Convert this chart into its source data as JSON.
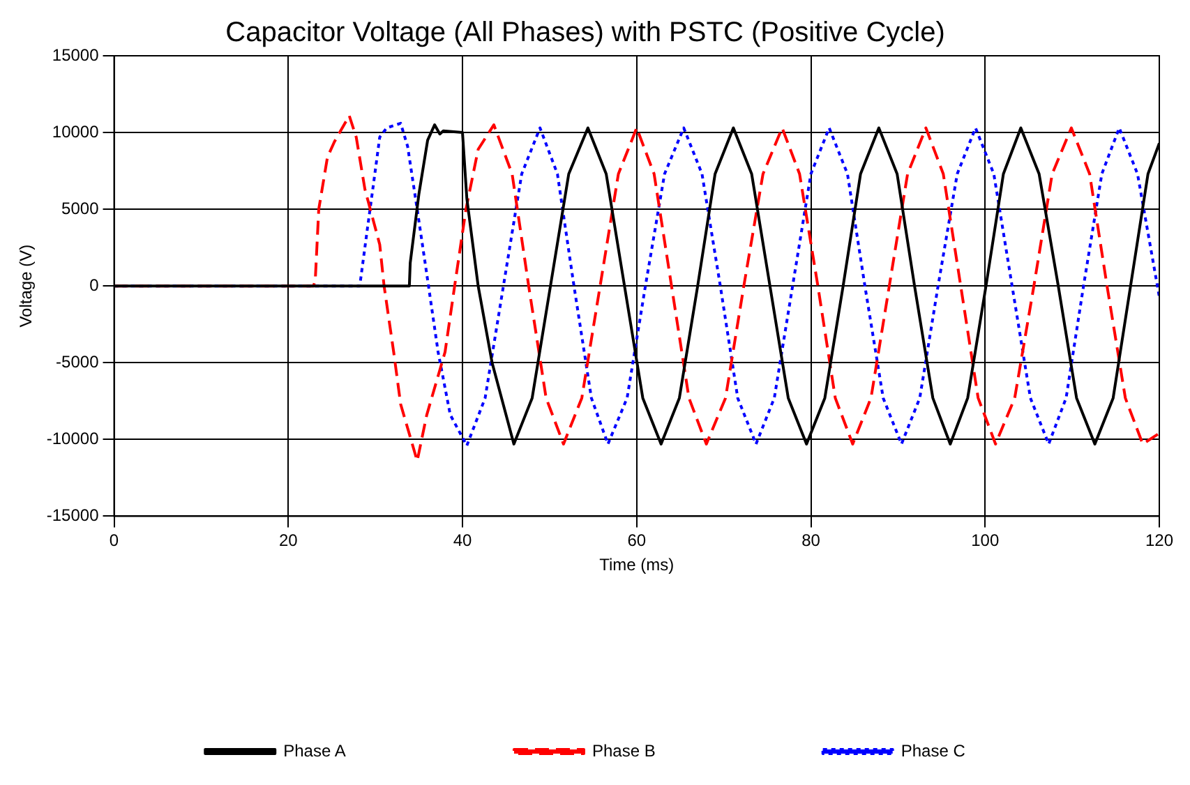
{
  "chart_data": {
    "type": "line",
    "title": "Capacitor Voltage (All Phases) with PSTC (Positive Cycle)",
    "xlabel": "Time (ms)",
    "ylabel": "Voltage (V)",
    "xlim": [
      0,
      120
    ],
    "xticks": [
      0,
      20,
      40,
      60,
      80,
      100,
      120
    ],
    "ylim": [
      -15000,
      15000
    ],
    "yticks": [
      -15000,
      -10000,
      -5000,
      0,
      5000,
      10000,
      15000
    ],
    "grid": true,
    "legend": "bottom",
    "series": [
      {
        "name": "Phase A",
        "color": "#000000",
        "line_style": "solid",
        "x": [
          0,
          33.9,
          34.0,
          35.0,
          36.0,
          36.8,
          37.4,
          37.8,
          40.0,
          40.5,
          41.8,
          43.4,
          45.9,
          48.0,
          50.1,
          52.2,
          54.4,
          56.5,
          58.6,
          60.7,
          62.8,
          64.9,
          67.0,
          69.0,
          71.1,
          73.2,
          75.3,
          77.4,
          79.5,
          81.6,
          83.7,
          85.7,
          87.8,
          89.9,
          91.9,
          94.0,
          96.0,
          98.0,
          100.1,
          102.1,
          104.1,
          106.2,
          108.4,
          110.5,
          112.6,
          114.7,
          116.7,
          118.7,
          120
        ],
        "values": [
          0,
          0,
          1500,
          6000,
          9500,
          10500,
          9900,
          10100,
          10000,
          5700,
          0,
          -5000,
          -10300,
          -7300,
          0,
          7300,
          10300,
          7300,
          0,
          -7300,
          -10300,
          -7300,
          0,
          7300,
          10300,
          7300,
          0,
          -7300,
          -10300,
          -7300,
          0,
          7300,
          10300,
          7300,
          0,
          -7300,
          -10300,
          -7300,
          0,
          7300,
          10300,
          7300,
          0,
          -7300,
          -10300,
          -7300,
          0,
          7300,
          9300
        ]
      },
      {
        "name": "Phase B",
        "color": "#ff0000",
        "line_style": "dashed",
        "x": [
          0,
          22.9,
          23.1,
          23.5,
          24.5,
          25.3,
          27.0,
          27.8,
          28.8,
          30.5,
          31.0,
          32.1,
          32.9,
          34.8,
          35.9,
          38.0,
          39.1,
          40.4,
          41.8,
          43.6,
          45.7,
          47.6,
          49.6,
          51.6,
          53.7,
          55.8,
          57.9,
          60.0,
          62.0,
          64.0,
          66.0,
          68.0,
          70.2,
          72.3,
          74.5,
          76.7,
          78.7,
          80.8,
          82.8,
          84.8,
          86.9,
          89.0,
          91.1,
          93.2,
          95.2,
          97.2,
          99.2,
          101.2,
          103.4,
          105.6,
          107.7,
          109.9,
          112.0,
          114.0,
          116.1,
          118.1,
          120
        ],
        "values": [
          0,
          0,
          400,
          5000,
          8400,
          9400,
          11100,
          9700,
          6300,
          2700,
          0,
          -4300,
          -7700,
          -11400,
          -8400,
          -4300,
          0,
          5000,
          8900,
          10500,
          7300,
          0,
          -7300,
          -10300,
          -7300,
          0,
          7300,
          10300,
          7300,
          0,
          -7300,
          -10300,
          -7300,
          0,
          7300,
          10300,
          7300,
          0,
          -7300,
          -10300,
          -7300,
          0,
          7300,
          10300,
          7300,
          0,
          -7300,
          -10300,
          -7300,
          0,
          7300,
          10300,
          7300,
          0,
          -7300,
          -10300,
          -9600
        ]
      },
      {
        "name": "Phase C",
        "color": "#0000ff",
        "line_style": "dotted",
        "x": [
          0,
          28.2,
          28.3,
          29.1,
          29.7,
          30.5,
          31.3,
          32.9,
          33.7,
          34.8,
          36.1,
          37.2,
          38.6,
          40.5,
          42.6,
          44.7,
          46.8,
          48.9,
          50.9,
          52.8,
          54.8,
          56.7,
          58.9,
          61.0,
          63.2,
          65.4,
          67.5,
          69.6,
          71.6,
          73.7,
          75.8,
          77.9,
          80.0,
          82.1,
          84.2,
          86.2,
          88.3,
          90.4,
          92.5,
          94.6,
          96.8,
          98.9,
          101.0,
          103.1,
          105.2,
          107.3,
          109.3,
          111.3,
          113.4,
          115.4,
          117.5,
          120
        ],
        "values": [
          0,
          0,
          400,
          3800,
          6300,
          9700,
          10300,
          10600,
          9100,
          5000,
          0,
          -4300,
          -8400,
          -10400,
          -7300,
          0,
          7300,
          10300,
          7300,
          0,
          -7300,
          -10300,
          -7300,
          0,
          7300,
          10300,
          7300,
          0,
          -7300,
          -10300,
          -7300,
          0,
          7300,
          10300,
          7300,
          0,
          -7300,
          -10300,
          -7300,
          0,
          7300,
          10300,
          7300,
          0,
          -7300,
          -10300,
          -7300,
          0,
          7300,
          10300,
          7300,
          -700
        ]
      }
    ]
  }
}
